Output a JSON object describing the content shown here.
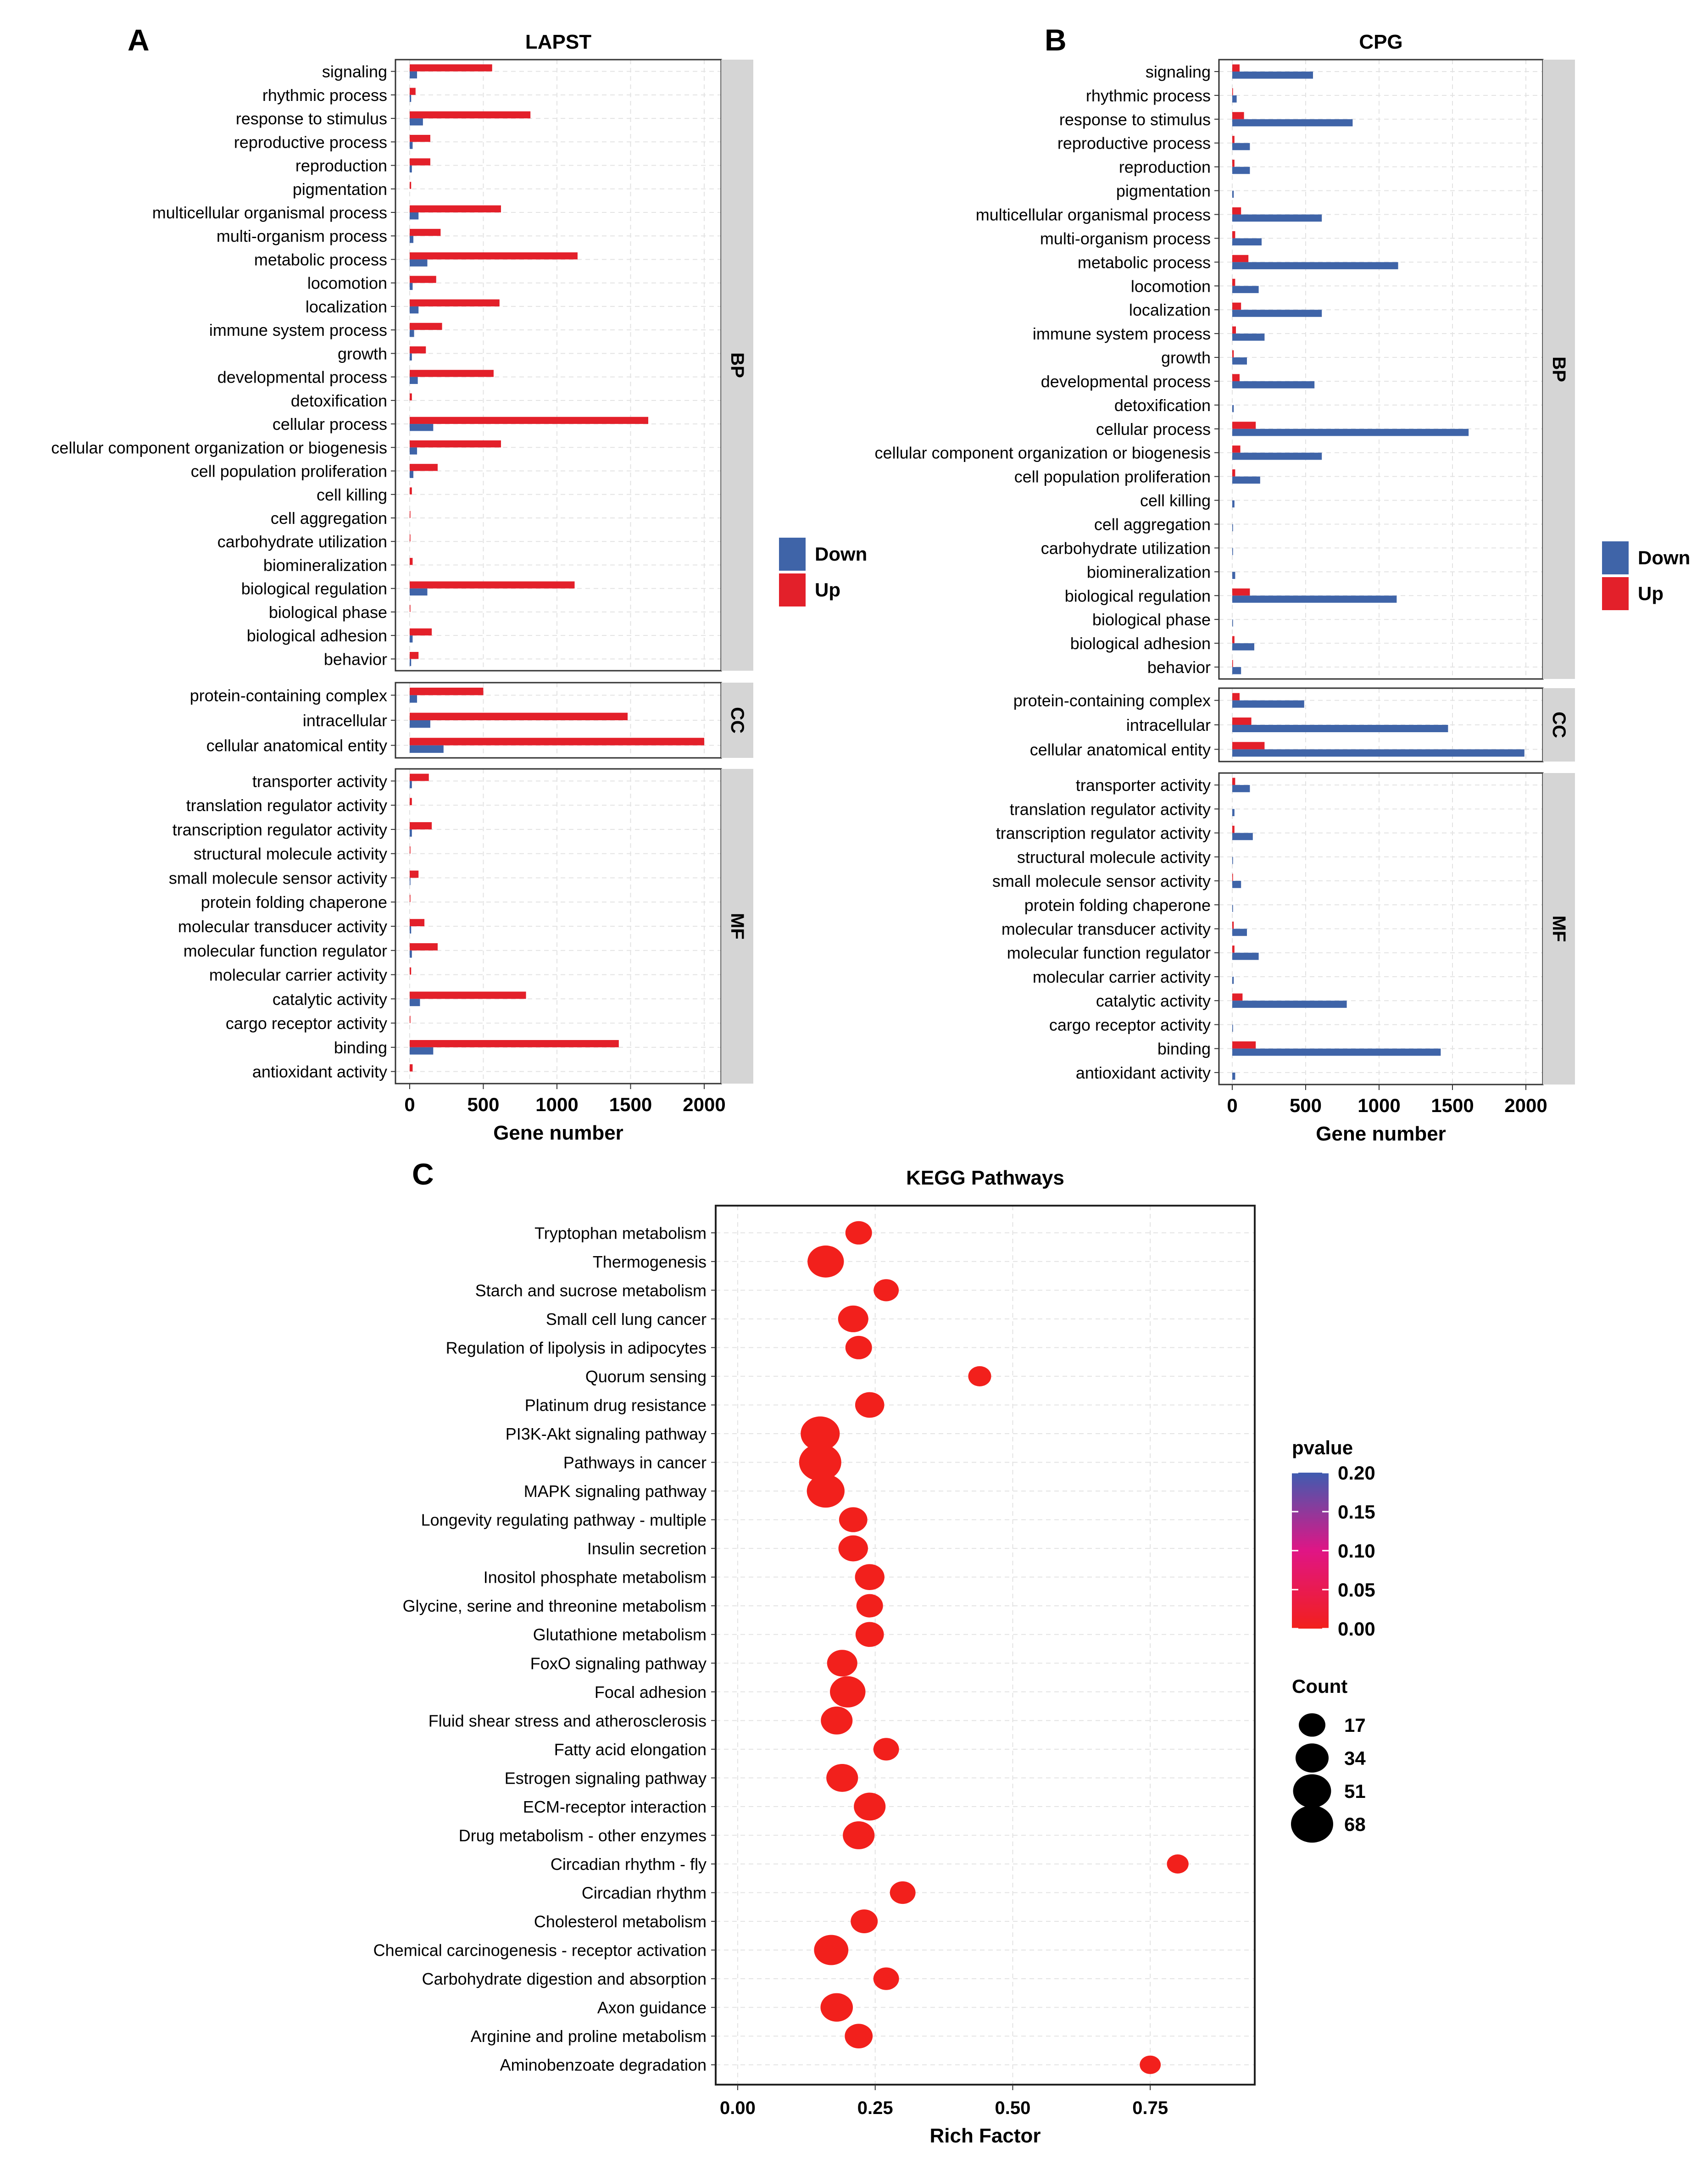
{
  "chart_data": [
    {
      "panel": "A",
      "type": "bar",
      "orientation": "horizontal",
      "title": "LAPST",
      "xlabel": "Gene number",
      "xlim": [
        0,
        2000
      ],
      "xticks": [
        0,
        500,
        1000,
        1500,
        2000
      ],
      "facets": [
        {
          "name": "BP",
          "categories": [
            "signaling",
            "rhythmic process",
            "response to stimulus",
            "reproductive process",
            "reproduction",
            "pigmentation",
            "multicellular organismal process",
            "multi-organism process",
            "metabolic process",
            "locomotion",
            "localization",
            "immune system process",
            "growth",
            "developmental process",
            "detoxification",
            "cellular process",
            "cellular component organization or biogenesis",
            "cell population proliferation",
            "cell killing",
            "cell aggregation",
            "carbohydrate utilization",
            "biomineralization",
            "biological regulation",
            "biological phase",
            "biological adhesion",
            "behavior"
          ],
          "series": [
            {
              "name": "Up",
              "values": [
                560,
                40,
                820,
                140,
                140,
                10,
                620,
                210,
                1140,
                180,
                610,
                220,
                110,
                570,
                15,
                1620,
                620,
                190,
                15,
                5,
                5,
                20,
                1120,
                5,
                150,
                60
              ]
            },
            {
              "name": "Down",
              "values": [
                50,
                10,
                90,
                20,
                15,
                0,
                60,
                25,
                120,
                20,
                60,
                30,
                15,
                55,
                0,
                160,
                50,
                25,
                0,
                0,
                0,
                0,
                120,
                0,
                20,
                10
              ]
            }
          ]
        },
        {
          "name": "CC",
          "categories": [
            "protein-containing complex",
            "intracellular",
            "cellular anatomical entity"
          ],
          "series": [
            {
              "name": "Up",
              "values": [
                500,
                1480,
                2000
              ]
            },
            {
              "name": "Down",
              "values": [
                50,
                140,
                230
              ]
            }
          ]
        },
        {
          "name": "MF",
          "categories": [
            "transporter activity",
            "translation regulator activity",
            "transcription regulator activity",
            "structural molecule activity",
            "small molecule sensor activity",
            "protein folding chaperone",
            "molecular transducer activity",
            "molecular function regulator",
            "molecular carrier activity",
            "catalytic activity",
            "cargo receptor activity",
            "binding",
            "antioxidant activity"
          ],
          "series": [
            {
              "name": "Up",
              "values": [
                130,
                15,
                150,
                5,
                60,
                5,
                100,
                190,
                10,
                790,
                5,
                1420,
                20
              ]
            },
            {
              "name": "Down",
              "values": [
                15,
                0,
                15,
                0,
                5,
                0,
                10,
                15,
                0,
                70,
                0,
                160,
                0
              ]
            }
          ]
        }
      ],
      "legend": {
        "position": "right",
        "items": [
          "Down",
          "Up"
        ]
      }
    },
    {
      "panel": "B",
      "type": "bar",
      "orientation": "horizontal",
      "title": "CPG",
      "xlabel": "Gene number",
      "xlim": [
        0,
        2000
      ],
      "xticks": [
        0,
        500,
        1000,
        1500,
        2000
      ],
      "facets": [
        {
          "name": "BP",
          "categories": [
            "signaling",
            "rhythmic process",
            "response to stimulus",
            "reproductive process",
            "reproduction",
            "pigmentation",
            "multicellular organismal process",
            "multi-organism process",
            "metabolic process",
            "locomotion",
            "localization",
            "immune system process",
            "growth",
            "developmental process",
            "detoxification",
            "cellular process",
            "cellular component organization or biogenesis",
            "cell population proliferation",
            "cell killing",
            "cell aggregation",
            "carbohydrate utilization",
            "biomineralization",
            "biological regulation",
            "biological phase",
            "biological adhesion",
            "behavior"
          ],
          "series": [
            {
              "name": "Up",
              "values": [
                50,
                5,
                80,
                15,
                15,
                0,
                60,
                20,
                110,
                20,
                60,
                25,
                10,
                50,
                0,
                160,
                55,
                20,
                0,
                0,
                0,
                0,
                120,
                0,
                15,
                5
              ]
            },
            {
              "name": "Down",
              "values": [
                550,
                30,
                820,
                120,
                120,
                10,
                610,
                200,
                1130,
                180,
                610,
                220,
                100,
                560,
                10,
                1610,
                610,
                190,
                15,
                5,
                5,
                20,
                1120,
                5,
                150,
                60
              ]
            }
          ]
        },
        {
          "name": "CC",
          "categories": [
            "protein-containing complex",
            "intracellular",
            "cellular anatomical entity"
          ],
          "series": [
            {
              "name": "Up",
              "values": [
                50,
                130,
                220
              ]
            },
            {
              "name": "Down",
              "values": [
                490,
                1470,
                1990
              ]
            }
          ]
        },
        {
          "name": "MF",
          "categories": [
            "transporter activity",
            "translation regulator activity",
            "transcription regulator activity",
            "structural molecule activity",
            "small molecule sensor activity",
            "protein folding chaperone",
            "molecular transducer activity",
            "molecular function regulator",
            "molecular carrier activity",
            "catalytic activity",
            "cargo receptor activity",
            "binding",
            "antioxidant activity"
          ],
          "series": [
            {
              "name": "Up",
              "values": [
                20,
                0,
                15,
                0,
                5,
                0,
                10,
                15,
                0,
                70,
                0,
                160,
                0
              ]
            },
            {
              "name": "Down",
              "values": [
                120,
                15,
                140,
                5,
                60,
                5,
                100,
                180,
                10,
                780,
                5,
                1420,
                20
              ]
            }
          ]
        }
      ],
      "legend": {
        "position": "right",
        "items": [
          "Down",
          "Up"
        ]
      }
    },
    {
      "panel": "C",
      "type": "scatter",
      "title": "KEGG Pathways",
      "xlabel": "Rich Factor",
      "xlim": [
        -0.04,
        0.94
      ],
      "xticks": [
        0.0,
        0.25,
        0.5,
        0.75
      ],
      "xtick_labels": [
        "0.00",
        "0.25",
        "0.50",
        "0.75"
      ],
      "categories": [
        "Tryptophan metabolism",
        "Thermogenesis",
        "Starch and sucrose metabolism",
        "Small cell lung cancer",
        "Regulation of lipolysis in adipocytes",
        "Quorum sensing",
        "Platinum drug resistance",
        "PI3K-Akt signaling pathway",
        "Pathways in cancer",
        "MAPK signaling pathway",
        "Longevity regulating pathway - multiple",
        "Insulin secretion",
        "Inositol phosphate metabolism",
        "Glycine, serine and threonine metabolism",
        "Glutathione metabolism",
        "FoxO signaling pathway",
        "Focal adhesion",
        "Fluid shear stress and atherosclerosis",
        "Fatty acid elongation",
        "Estrogen signaling pathway",
        "ECM-receptor interaction",
        "Drug metabolism - other enzymes",
        "Circadian rhythm - fly",
        "Circadian rhythm",
        "Cholesterol metabolism",
        "Chemical carcinogenesis - receptor activation",
        "Carbohydrate digestion and absorption",
        "Axon guidance",
        "Arginine and proline metabolism",
        "Aminobenzoate degradation"
      ],
      "rich_factor": [
        0.22,
        0.16,
        0.27,
        0.21,
        0.22,
        0.44,
        0.24,
        0.15,
        0.15,
        0.16,
        0.21,
        0.21,
        0.24,
        0.24,
        0.24,
        0.19,
        0.2,
        0.18,
        0.27,
        0.19,
        0.24,
        0.22,
        0.8,
        0.3,
        0.23,
        0.17,
        0.27,
        0.18,
        0.22,
        0.75
      ],
      "count": [
        17,
        45,
        14,
        26,
        17,
        10,
        23,
        55,
        68,
        50,
        21,
        24,
        24,
        17,
        21,
        26,
        42,
        30,
        15,
        30,
        30,
        30,
        8,
        15,
        18,
        38,
        15,
        32,
        20,
        7
      ],
      "pvalue": [
        0.02,
        0.02,
        0.02,
        0.02,
        0.02,
        0.02,
        0.02,
        0.03,
        0.03,
        0.02,
        0.02,
        0.02,
        0.02,
        0.02,
        0.02,
        0.02,
        0.02,
        0.02,
        0.02,
        0.02,
        0.02,
        0.02,
        0.02,
        0.02,
        0.02,
        0.02,
        0.02,
        0.02,
        0.02,
        0.02
      ],
      "color_legend": {
        "title": "pvalue",
        "ticks": [
          0.2,
          0.15,
          0.1,
          0.05,
          0.0
        ],
        "tick_labels": [
          "0.20",
          "0.15",
          "0.10",
          "0.05",
          "0.00"
        ],
        "range": [
          0.0,
          0.2
        ]
      },
      "size_legend": {
        "title": "Count",
        "values": [
          17,
          34,
          51,
          68
        ],
        "labels": [
          "17",
          "34",
          "51",
          "68"
        ]
      }
    }
  ],
  "labels": {
    "panel_a": "A",
    "panel_b": "B",
    "panel_c": "C",
    "down": "Down",
    "up": "Up"
  },
  "colors": {
    "up": "#E3202A",
    "down": "#3F64A8",
    "strip": "#D5D5D5",
    "grid": "#E3E3E3",
    "pv_high": "#3F5CB0",
    "pv_mid": "#E01585",
    "pv_low": "#F2201C"
  }
}
